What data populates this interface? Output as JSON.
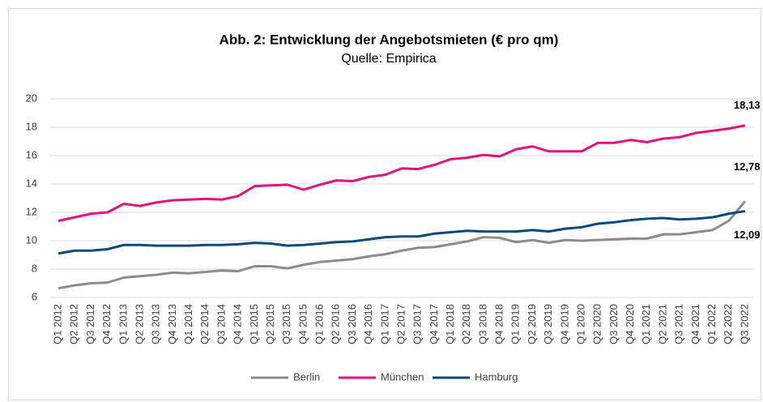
{
  "chart_data": {
    "type": "line",
    "title": "Abb. 2: Entwicklung der Angebotsmieten (€ pro qm)",
    "subtitle": "Quelle: Empirica",
    "categories": [
      "Q1 2012",
      "Q2 2012",
      "Q3 2012",
      "Q4 2012",
      "Q1 2013",
      "Q2 2013",
      "Q3 2013",
      "Q4 2013",
      "Q1 2014",
      "Q2 2014",
      "Q3 2014",
      "Q4 2014",
      "Q1 2015",
      "Q2 2015",
      "Q3 2015",
      "Q4 2015",
      "Q1 2016",
      "Q2 2016",
      "Q3 2016",
      "Q4 2016",
      "Q1 2017",
      "Q2 2017",
      "Q3 2017",
      "Q4 2017",
      "Q1 2018",
      "Q2 2018",
      "Q3 2018",
      "Q4 2018",
      "Q1 2019",
      "Q2 2019",
      "Q3 2019",
      "Q4 2019",
      "Q1 2020",
      "Q2 2020",
      "Q3 2020",
      "Q4 2020",
      "Q1 2021",
      "Q2 2021",
      "Q3 2021",
      "Q4 2021",
      "Q1 2022",
      "Q2 2022",
      "Q3 2022"
    ],
    "series": [
      {
        "name": "Berlin",
        "color": "#8c8c8c",
        "values": [
          6.65,
          6.85,
          7.0,
          7.05,
          7.4,
          7.5,
          7.6,
          7.75,
          7.7,
          7.8,
          7.9,
          7.85,
          8.2,
          8.2,
          8.05,
          8.3,
          8.5,
          8.6,
          8.7,
          8.9,
          9.05,
          9.3,
          9.5,
          9.55,
          9.75,
          9.95,
          10.25,
          10.2,
          9.9,
          10.05,
          9.85,
          10.05,
          10.0,
          10.05,
          10.1,
          10.15,
          10.15,
          10.45,
          10.45,
          10.6,
          10.75,
          11.4,
          12.78
        ],
        "value_labels": {
          "42": "12,78"
        }
      },
      {
        "name": "München",
        "color": "#e0147c",
        "values": [
          11.4,
          11.65,
          11.9,
          12.0,
          12.6,
          12.45,
          12.7,
          12.85,
          12.9,
          12.95,
          12.9,
          13.15,
          13.85,
          13.9,
          13.95,
          13.6,
          13.95,
          14.25,
          14.2,
          14.5,
          14.65,
          15.1,
          15.05,
          15.35,
          15.75,
          15.85,
          16.05,
          15.95,
          16.45,
          16.65,
          16.3,
          16.3,
          16.3,
          16.9,
          16.9,
          17.1,
          16.95,
          17.2,
          17.3,
          17.6,
          17.75,
          17.9,
          18.13
        ],
        "value_labels": {
          "42": "18,13"
        }
      },
      {
        "name": "Hamburg",
        "color": "#0b4a7a",
        "values": [
          9.1,
          9.3,
          9.3,
          9.4,
          9.7,
          9.7,
          9.65,
          9.65,
          9.65,
          9.7,
          9.7,
          9.75,
          9.85,
          9.8,
          9.65,
          9.7,
          9.8,
          9.9,
          9.95,
          10.1,
          10.25,
          10.3,
          10.3,
          10.5,
          10.6,
          10.7,
          10.65,
          10.65,
          10.65,
          10.75,
          10.65,
          10.85,
          10.95,
          11.2,
          11.3,
          11.45,
          11.55,
          11.6,
          11.5,
          11.55,
          11.65,
          11.9,
          12.09
        ],
        "value_labels": {
          "42": "12,09"
        }
      }
    ],
    "ylim": [
      6,
      20
    ],
    "yticks": [
      6,
      8,
      10,
      12,
      14,
      16,
      18,
      20
    ],
    "grid": true,
    "legend": "bottom"
  }
}
